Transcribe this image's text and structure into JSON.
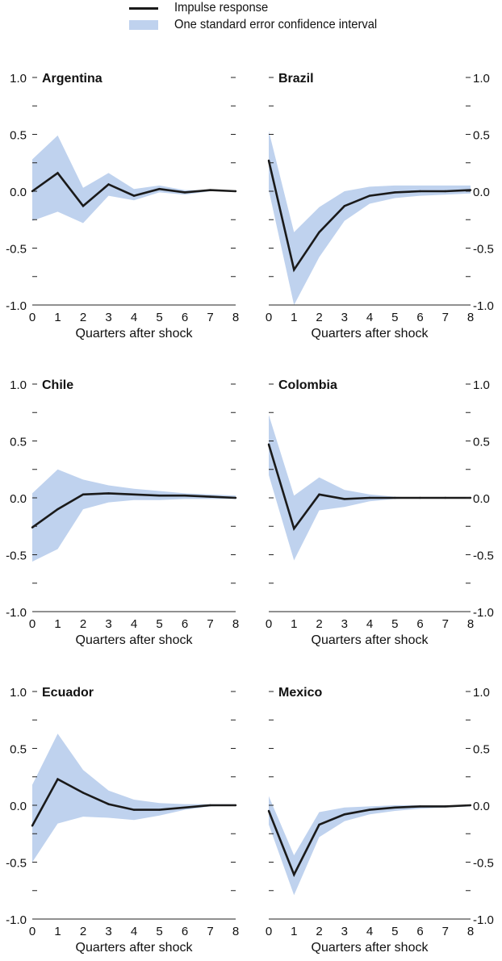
{
  "legend": {
    "line_label": "Impulse response",
    "band_label": "One standard error confidence interval",
    "line_color": "#1a1a1a",
    "band_color": "#bfd2ee"
  },
  "chart_data": [
    {
      "type": "line",
      "title": "Argentina",
      "xlabel": "Quarters after shock",
      "ylabel": "",
      "x": [
        0,
        1,
        2,
        3,
        4,
        5,
        6,
        7,
        8
      ],
      "ylim": [
        -1.0,
        1.0
      ],
      "yticks": [
        "1.0",
        "0.5",
        "0.0",
        "-0.5",
        "-1.0"
      ],
      "series": [
        {
          "role": "line",
          "values": [
            0.0,
            0.16,
            -0.13,
            0.06,
            -0.04,
            0.02,
            -0.01,
            0.01,
            0.0
          ]
        },
        {
          "role": "band_upper",
          "values": [
            0.28,
            0.49,
            0.03,
            0.16,
            0.02,
            0.05,
            0.01,
            0.01,
            0.0
          ]
        },
        {
          "role": "band_lower",
          "values": [
            -0.26,
            -0.18,
            -0.28,
            -0.04,
            -0.08,
            -0.01,
            -0.03,
            0.0,
            0.0
          ]
        }
      ]
    },
    {
      "type": "line",
      "title": "Brazil",
      "xlabel": "Quarters after shock",
      "ylabel": "",
      "x": [
        0,
        1,
        2,
        3,
        4,
        5,
        6,
        7,
        8
      ],
      "ylim": [
        -1.0,
        1.0
      ],
      "yticks": [
        "1.0",
        "0.5",
        "0.0",
        "-0.5",
        "-1.0"
      ],
      "series": [
        {
          "role": "line",
          "values": [
            0.27,
            -0.69,
            -0.36,
            -0.13,
            -0.04,
            -0.01,
            0.0,
            0.0,
            0.01
          ]
        },
        {
          "role": "band_upper",
          "values": [
            0.53,
            -0.36,
            -0.14,
            0.0,
            0.04,
            0.05,
            0.05,
            0.05,
            0.05
          ]
        },
        {
          "role": "band_lower",
          "values": [
            0.01,
            -1.0,
            -0.58,
            -0.26,
            -0.11,
            -0.06,
            -0.04,
            -0.03,
            -0.02
          ]
        }
      ]
    },
    {
      "type": "line",
      "title": "Chile",
      "xlabel": "Quarters after shock",
      "ylabel": "",
      "x": [
        0,
        1,
        2,
        3,
        4,
        5,
        6,
        7,
        8
      ],
      "ylim": [
        -1.0,
        1.0
      ],
      "yticks": [
        "1.0",
        "0.5",
        "0.0",
        "-0.5",
        "-1.0"
      ],
      "series": [
        {
          "role": "line",
          "values": [
            -0.26,
            -0.1,
            0.03,
            0.04,
            0.03,
            0.02,
            0.02,
            0.01,
            0.0
          ]
        },
        {
          "role": "band_upper",
          "values": [
            0.04,
            0.25,
            0.16,
            0.11,
            0.08,
            0.06,
            0.04,
            0.03,
            0.02
          ]
        },
        {
          "role": "band_lower",
          "values": [
            -0.56,
            -0.45,
            -0.1,
            -0.04,
            -0.02,
            -0.02,
            -0.01,
            -0.01,
            -0.01
          ]
        }
      ]
    },
    {
      "type": "line",
      "title": "Colombia",
      "xlabel": "Quarters after shock",
      "ylabel": "",
      "x": [
        0,
        1,
        2,
        3,
        4,
        5,
        6,
        7,
        8
      ],
      "ylim": [
        -1.0,
        1.0
      ],
      "yticks": [
        "1.0",
        "0.5",
        "0.0",
        "-0.5",
        "-1.0"
      ],
      "series": [
        {
          "role": "line",
          "values": [
            0.47,
            -0.27,
            0.03,
            -0.01,
            0.0,
            0.0,
            0.0,
            0.0,
            0.0
          ]
        },
        {
          "role": "band_upper",
          "values": [
            0.73,
            0.02,
            0.18,
            0.07,
            0.03,
            0.01,
            0.0,
            0.0,
            0.0
          ]
        },
        {
          "role": "band_lower",
          "values": [
            0.2,
            -0.55,
            -0.11,
            -0.08,
            -0.03,
            -0.01,
            0.0,
            0.0,
            0.0
          ]
        }
      ]
    },
    {
      "type": "line",
      "title": "Ecuador",
      "xlabel": "Quarters after shock",
      "ylabel": "",
      "x": [
        0,
        1,
        2,
        3,
        4,
        5,
        6,
        7,
        8
      ],
      "ylim": [
        -1.0,
        1.0
      ],
      "yticks": [
        "1.0",
        "0.5",
        "0.0",
        "-0.5",
        "-1.0"
      ],
      "series": [
        {
          "role": "line",
          "values": [
            -0.18,
            0.23,
            0.11,
            0.01,
            -0.04,
            -0.04,
            -0.02,
            0.0,
            0.0
          ]
        },
        {
          "role": "band_upper",
          "values": [
            0.18,
            0.63,
            0.31,
            0.13,
            0.05,
            0.02,
            0.01,
            0.01,
            0.01
          ]
        },
        {
          "role": "band_lower",
          "values": [
            -0.5,
            -0.16,
            -0.1,
            -0.11,
            -0.13,
            -0.09,
            -0.04,
            -0.01,
            0.0
          ]
        }
      ]
    },
    {
      "type": "line",
      "title": "Mexico",
      "xlabel": "Quarters after shock",
      "ylabel": "",
      "x": [
        0,
        1,
        2,
        3,
        4,
        5,
        6,
        7,
        8
      ],
      "ylim": [
        -1.0,
        1.0
      ],
      "yticks": [
        "1.0",
        "0.5",
        "0.0",
        "-0.5",
        "-1.0"
      ],
      "series": [
        {
          "role": "line",
          "values": [
            -0.05,
            -0.61,
            -0.17,
            -0.08,
            -0.04,
            -0.02,
            -0.01,
            -0.01,
            0.0
          ]
        },
        {
          "role": "band_upper",
          "values": [
            0.08,
            -0.44,
            -0.06,
            -0.02,
            -0.01,
            0.0,
            0.0,
            0.0,
            0.0
          ]
        },
        {
          "role": "band_lower",
          "values": [
            -0.17,
            -0.79,
            -0.28,
            -0.14,
            -0.08,
            -0.05,
            -0.03,
            -0.02,
            -0.01
          ]
        }
      ]
    }
  ]
}
